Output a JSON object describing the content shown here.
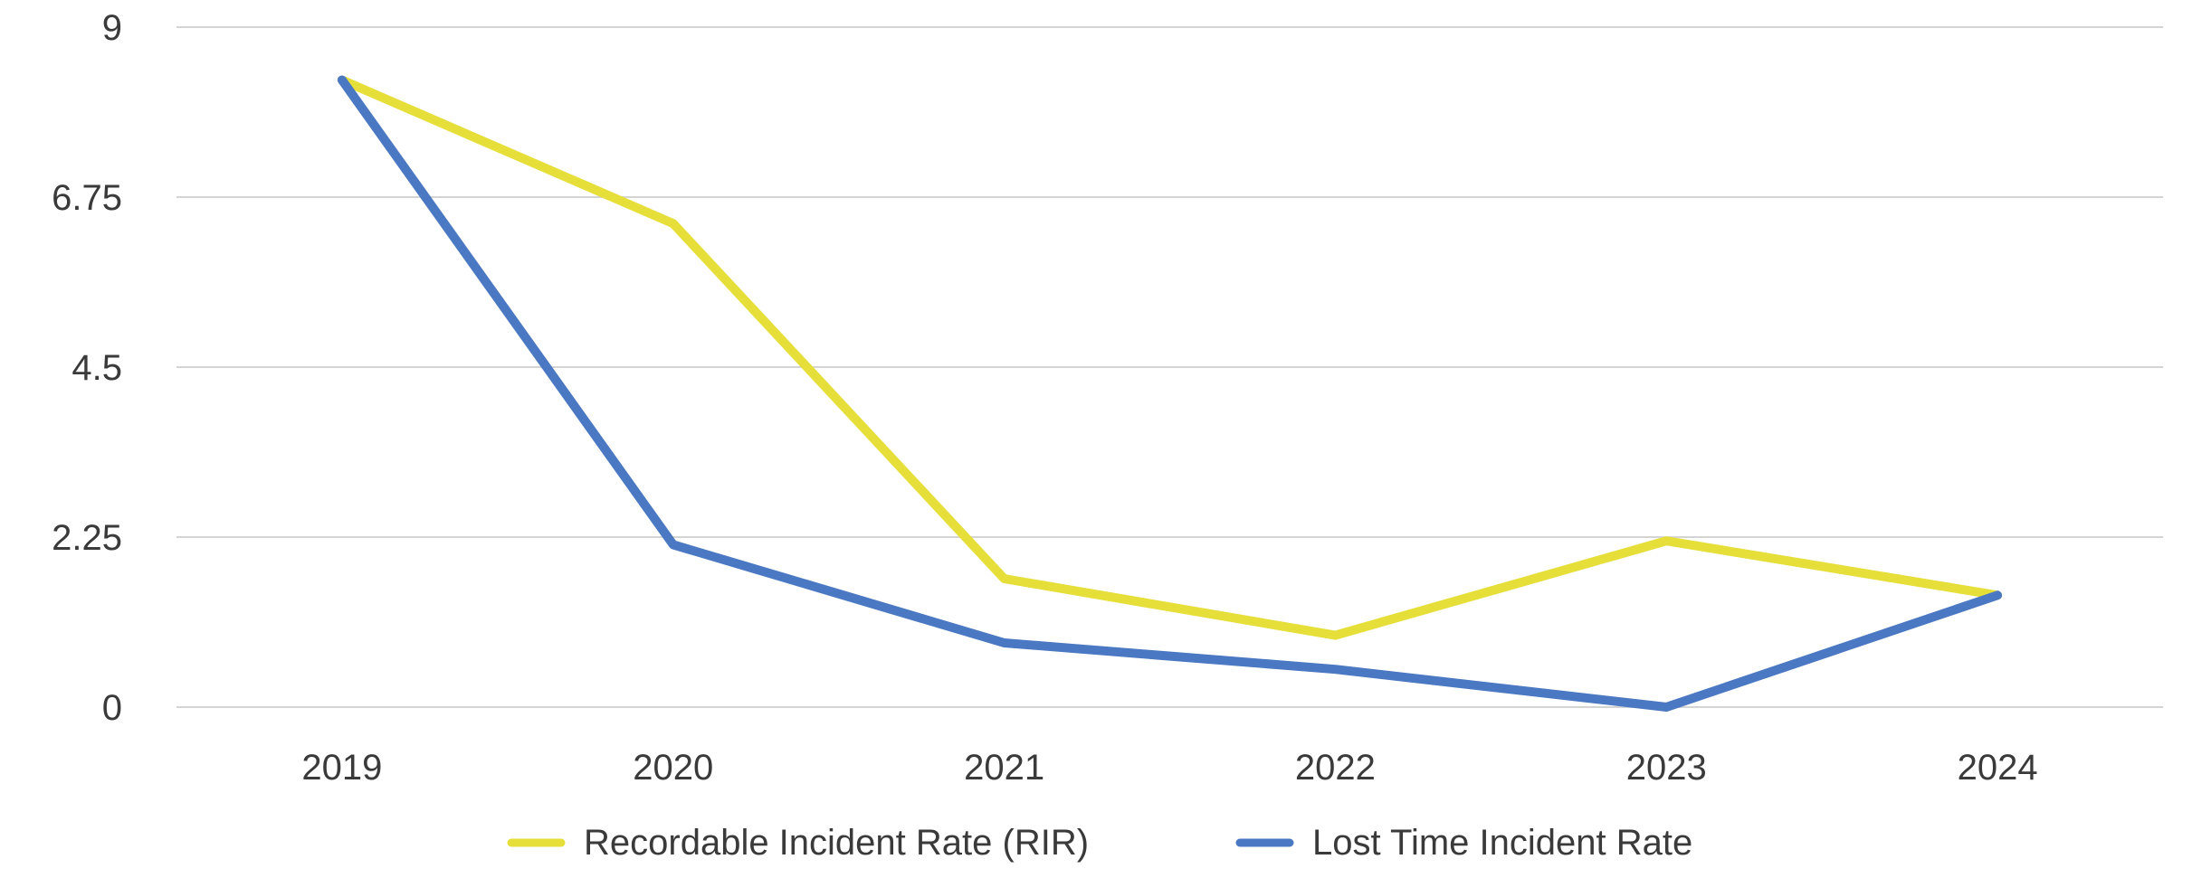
{
  "chart_data": {
    "type": "line",
    "categories": [
      "2019",
      "2020",
      "2021",
      "2022",
      "2023",
      "2024"
    ],
    "series": [
      {
        "name": "Recordable Incident Rate (RIR)",
        "color": "#e6df3a",
        "values": [
          8.3,
          6.4,
          1.7,
          0.95,
          2.2,
          1.48
        ]
      },
      {
        "name": "Lost Time Incident Rate",
        "color": "#4a78c2",
        "values": [
          8.3,
          2.15,
          0.85,
          0.5,
          0.0,
          1.48
        ]
      }
    ],
    "yticks": [
      "0",
      "2.25",
      "4.5",
      "6.75",
      "9"
    ],
    "ylim": [
      0,
      9
    ],
    "grid": true,
    "legend_position": "bottom",
    "title": "",
    "xlabel": "",
    "ylabel": ""
  }
}
